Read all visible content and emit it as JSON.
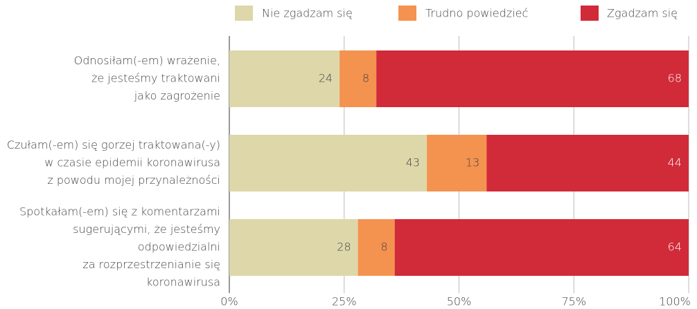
{
  "chart_data": {
    "type": "stacked-bar-horizontal",
    "categories": [
      [
        "Odnosiłam(-em) wrażenie,",
        "że jesteśmy traktowani",
        "jako zagrożenie"
      ],
      [
        "Czułam(-em) się gorzej traktowana(-y)",
        "w czasie epidemii koronawirusa",
        "z powodu mojej przynależności"
      ],
      [
        "Spotkałam(-em) się z komentarzami",
        "sugerującymi, że jesteśmy",
        "odpowiedzialni",
        "za rozprzestrzenianie się",
        "koronawirusa"
      ]
    ],
    "series": [
      {
        "name": "Nie zgadzam się",
        "color": "#ddd7aa",
        "values": [
          24,
          43,
          28
        ]
      },
      {
        "name": "Trudno powiedzieć",
        "color": "#f4924f",
        "values": [
          8,
          13,
          8
        ]
      },
      {
        "name": "Zgadzam się",
        "color": "#d12a39",
        "values": [
          68,
          44,
          64
        ]
      }
    ],
    "xlim": [
      0,
      100
    ],
    "xticks": [
      {
        "value": 0,
        "label": "0%"
      },
      {
        "value": 25,
        "label": "25%"
      },
      {
        "value": 50,
        "label": "50%"
      },
      {
        "value": 75,
        "label": "75%"
      },
      {
        "value": 100,
        "label": "100%"
      }
    ],
    "grid": true,
    "legend": "top"
  }
}
